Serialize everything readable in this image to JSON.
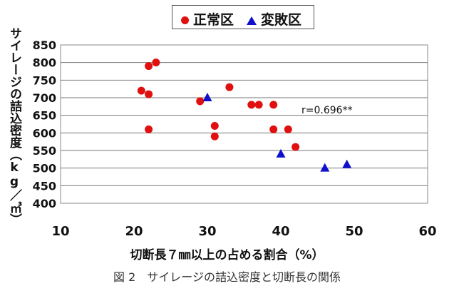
{
  "chart_data": {
    "type": "scatter",
    "title": "",
    "xlabel": "切断長７㎜以上の占める割合（%）",
    "ylabel": "サイレージの詰込密度（kg／㎥）",
    "xlim": [
      10,
      60
    ],
    "ylim": [
      400,
      850
    ],
    "x_ticks": [
      "10",
      "20",
      "30",
      "40",
      "50",
      "60"
    ],
    "y_ticks": [
      "400",
      "450",
      "500",
      "550",
      "600",
      "650",
      "700",
      "750",
      "800",
      "850"
    ],
    "grid": "horizontal",
    "legend_placement": "top-center",
    "annotation": "r=0.696**",
    "series": [
      {
        "name": "正常区",
        "marker": "circle",
        "color": "#e01010",
        "points": [
          [
            21,
            720
          ],
          [
            22,
            710
          ],
          [
            22,
            790
          ],
          [
            23,
            800
          ],
          [
            22,
            610
          ],
          [
            29,
            690
          ],
          [
            31,
            620
          ],
          [
            31,
            590
          ],
          [
            33,
            730
          ],
          [
            36,
            680
          ],
          [
            37,
            680
          ],
          [
            39,
            680
          ],
          [
            39,
            610
          ],
          [
            41,
            610
          ],
          [
            42,
            560
          ]
        ]
      },
      {
        "name": "変敗区",
        "marker": "triangle",
        "color": "#1010cc",
        "points": [
          [
            30,
            700
          ],
          [
            40,
            540
          ],
          [
            46,
            500
          ],
          [
            49,
            510
          ]
        ]
      }
    ]
  },
  "caption": "図 2　サイレージの詰込密度と切断長の関係"
}
